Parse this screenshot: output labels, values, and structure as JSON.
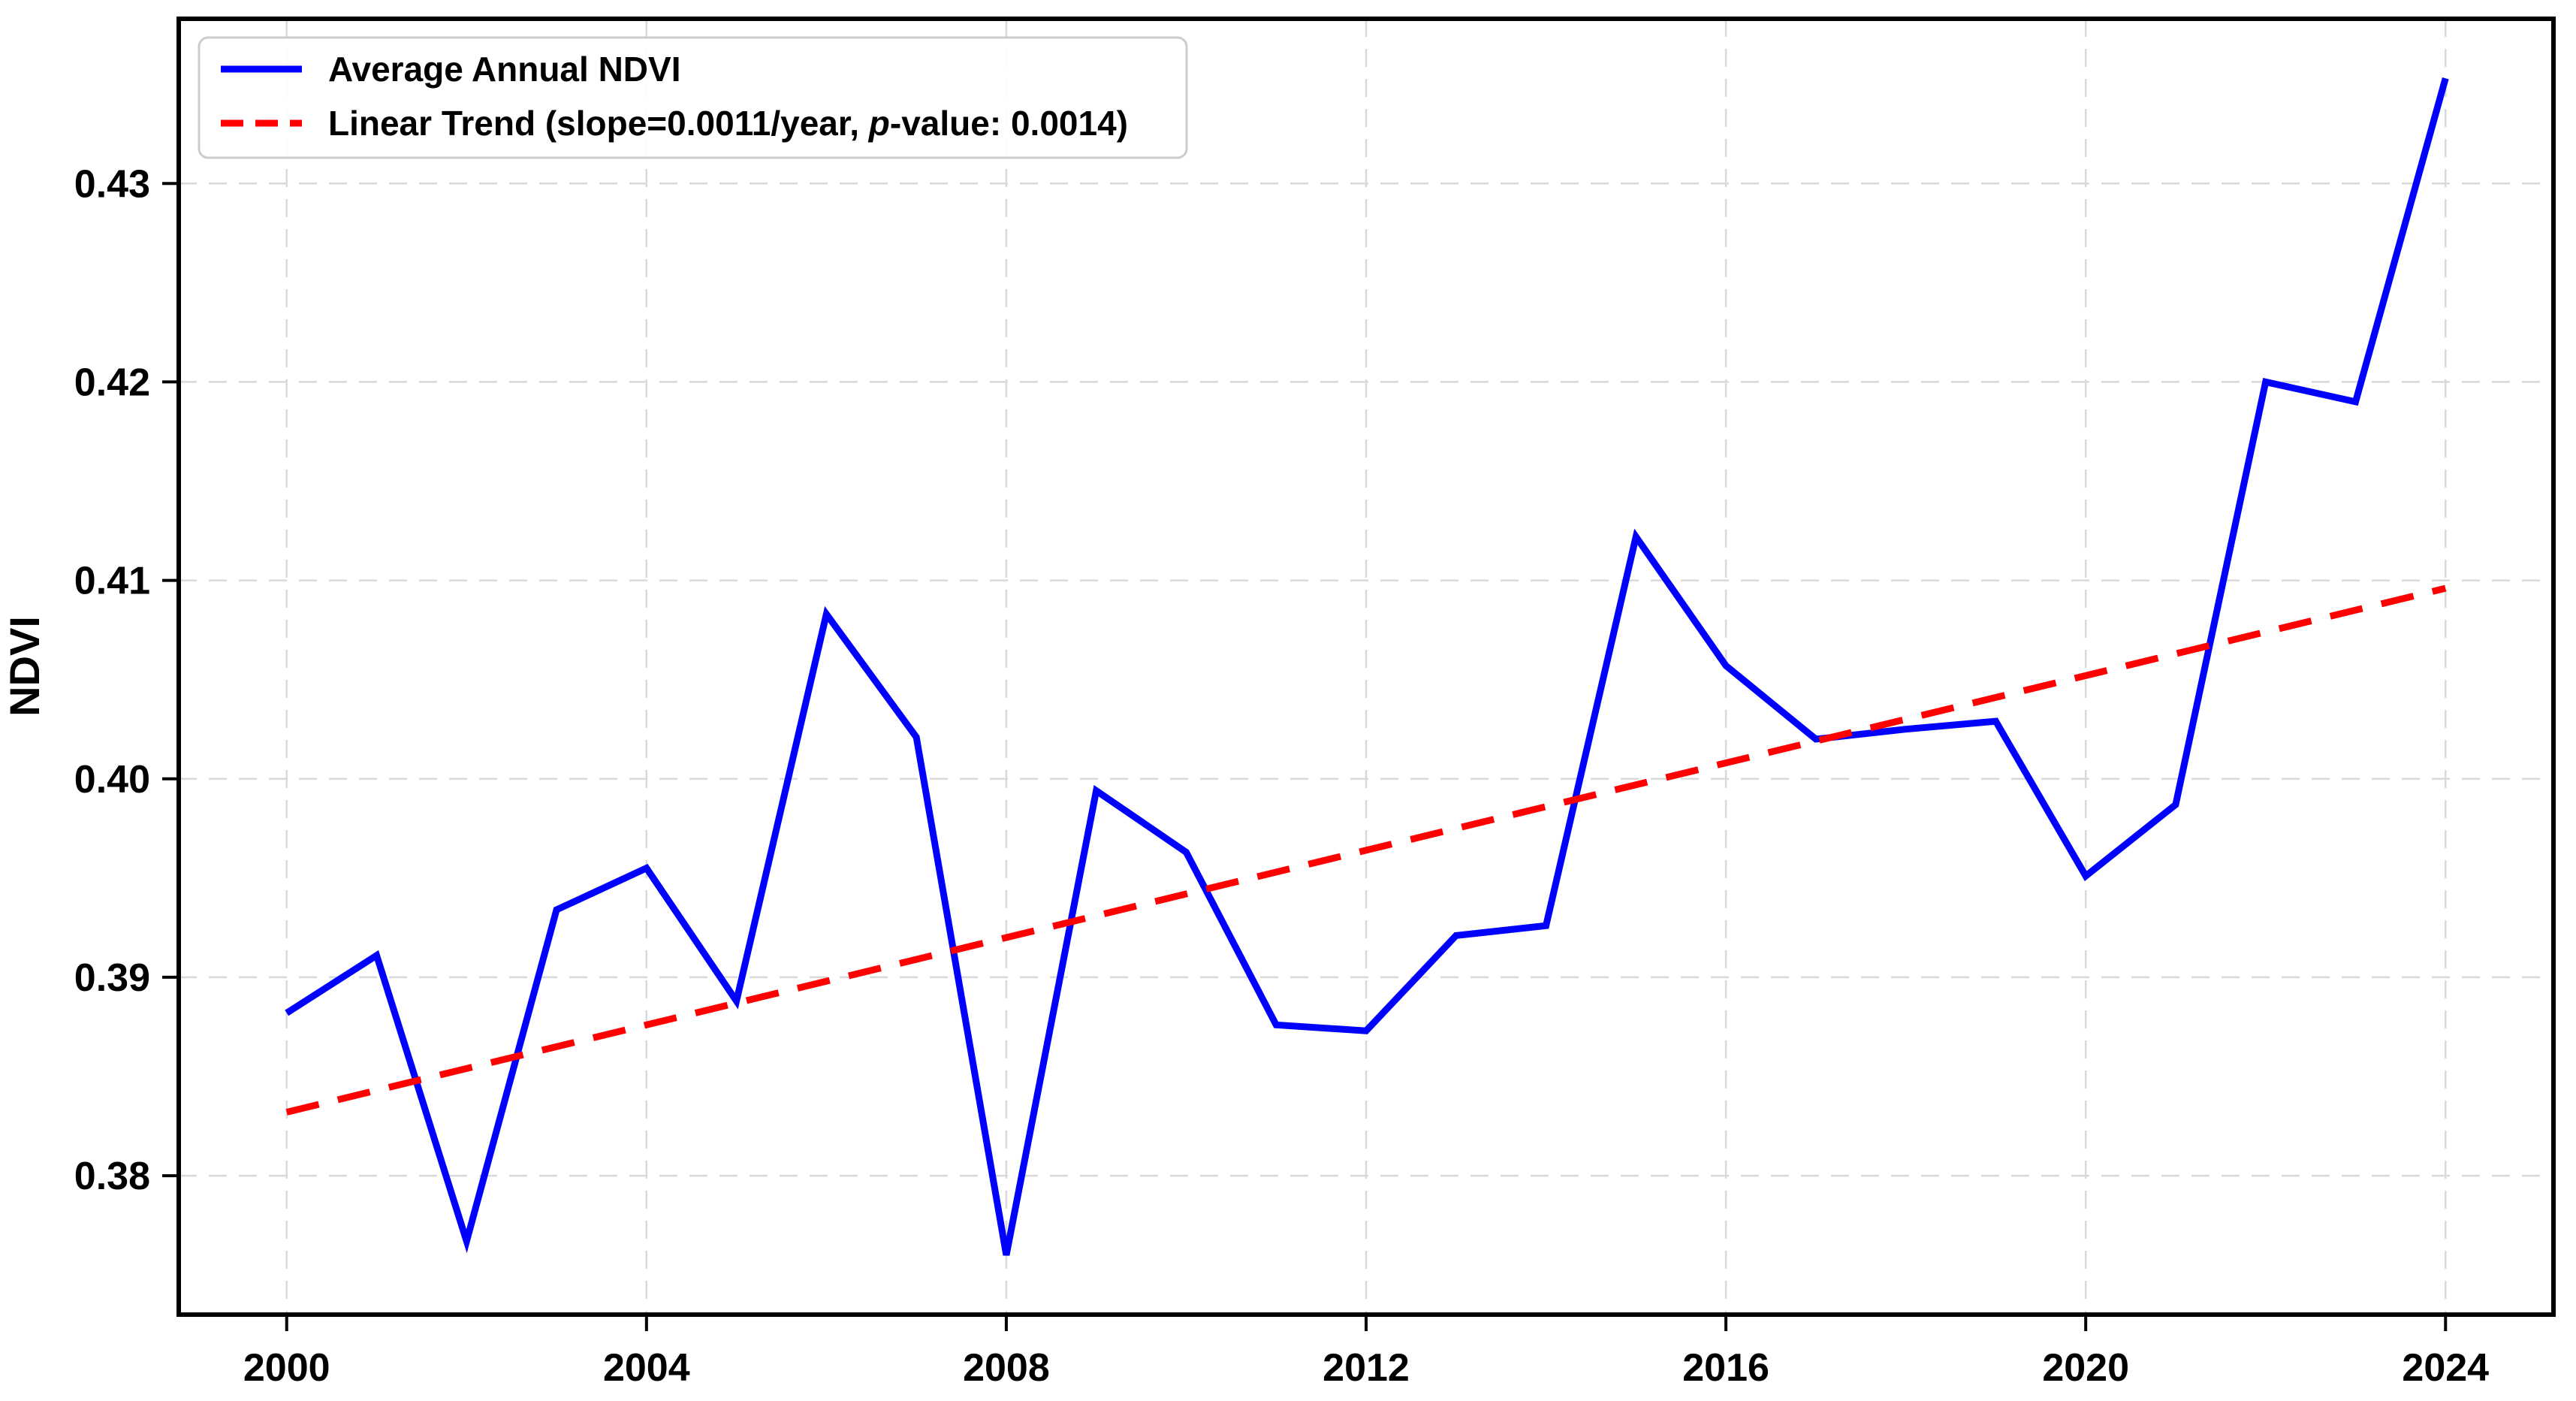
{
  "chart_data": {
    "type": "line",
    "title": "",
    "xlabel": "",
    "ylabel": "NDVI",
    "grid": true,
    "legend_position": "upper-left",
    "x": [
      2000,
      2001,
      2002,
      2003,
      2004,
      2005,
      2006,
      2007,
      2008,
      2009,
      2010,
      2011,
      2012,
      2013,
      2014,
      2015,
      2016,
      2017,
      2018,
      2019,
      2020,
      2021,
      2022,
      2023,
      2024
    ],
    "series": [
      {
        "name": "Average Annual NDVI",
        "style": "solid",
        "values": [
          0.3882,
          0.3911,
          0.3767,
          0.3934,
          0.3955,
          0.3888,
          0.4083,
          0.4021,
          0.376,
          0.3994,
          0.3963,
          0.3876,
          0.3873,
          0.3921,
          0.3926,
          0.4122,
          0.4057,
          0.402,
          0.4025,
          0.4029,
          0.3951,
          0.3987,
          0.42,
          0.419,
          0.4353
        ]
      },
      {
        "name": "Linear Trend (slope=0.0011/year, p-value: 0.0014)",
        "style": "dashed",
        "trend": {
          "slope_per_year": 0.0011,
          "p_value": 0.0014,
          "start_year": 2000,
          "start_value": 0.3832,
          "end_year": 2024,
          "end_value": 0.4096
        }
      }
    ],
    "xlim": [
      1998.8,
      2025.2
    ],
    "ylim": [
      0.373,
      0.4383
    ],
    "x_ticks": [
      2000,
      2004,
      2008,
      2012,
      2016,
      2020,
      2024
    ],
    "x_tick_labels": [
      "2000",
      "2004",
      "2008",
      "2012",
      "2016",
      "2020",
      "2024"
    ],
    "y_ticks": [
      0.38,
      0.39,
      0.4,
      0.41,
      0.42,
      0.43
    ],
    "y_tick_labels": [
      "0.38",
      "0.39",
      "0.40",
      "0.41",
      "0.42",
      "0.43"
    ],
    "legend": {
      "entries": [
        {
          "label": "Average Annual NDVI"
        },
        {
          "label": "Linear Trend (slope=0.0011/year, p-value: 0.0014)",
          "label_parts": {
            "prefix": "Linear Trend (slope=0.0011/year, ",
            "italic": "p",
            "suffix": "-value: 0.0014)"
          }
        }
      ]
    },
    "colors": {
      "ndvi_line": "#0000ff",
      "trend_line": "#ff0000",
      "grid": "#d9d9d9",
      "axes": "#000000",
      "tick_text": "#000000",
      "legend_border": "#cccccc",
      "background": "#ffffff"
    }
  }
}
